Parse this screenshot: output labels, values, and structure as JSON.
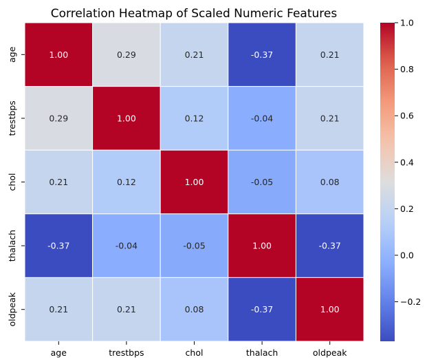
{
  "chart_data": {
    "type": "heatmap",
    "title": "Correlation Heatmap of Scaled Numeric Features",
    "xlabel": "",
    "ylabel": "",
    "x_categories": [
      "age",
      "trestbps",
      "chol",
      "thalach",
      "oldpeak"
    ],
    "y_categories": [
      "age",
      "trestbps",
      "chol",
      "thalach",
      "oldpeak"
    ],
    "values": [
      [
        1.0,
        0.29,
        0.21,
        -0.37,
        0.21
      ],
      [
        0.29,
        1.0,
        0.12,
        -0.04,
        0.21
      ],
      [
        0.21,
        0.12,
        1.0,
        -0.05,
        0.08
      ],
      [
        -0.37,
        -0.04,
        -0.05,
        1.0,
        -0.37
      ],
      [
        0.21,
        0.21,
        0.08,
        -0.37,
        1.0
      ]
    ],
    "colormap": "coolwarm",
    "vmin": -0.37,
    "vmax": 1.0,
    "annotation_format": "0.00",
    "colorbar": {
      "ticks": [
        "−0.2",
        "0.0",
        "0.2",
        "0.4",
        "0.6",
        "0.8",
        "1.0"
      ],
      "tick_values": [
        -0.2,
        0.0,
        0.2,
        0.4,
        0.6,
        0.8,
        1.0
      ],
      "placement": "right"
    },
    "grid": false,
    "legend": "none",
    "colors": {
      "cmap_low": "#3b4cc0",
      "cmap_mid": "#dddddd",
      "cmap_high": "#b40426",
      "cell_border": "#ffffff",
      "text_dark": "#262626",
      "text_light": "#ffffff"
    }
  }
}
